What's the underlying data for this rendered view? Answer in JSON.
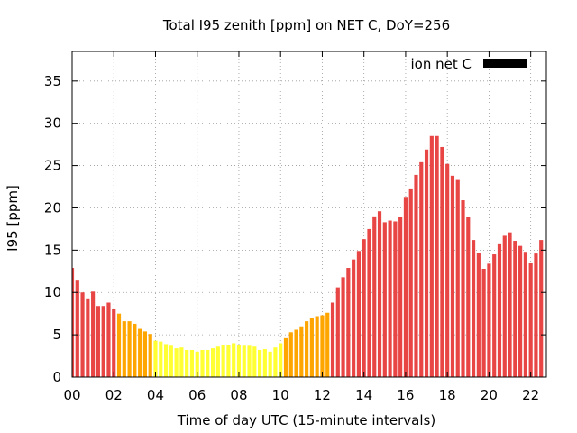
{
  "chart_data": {
    "type": "bar",
    "title": "Total I95 zenith [ppm] on NET C, DoY=256",
    "xlabel": "Time of day UTC (15-minute intervals)",
    "ylabel": "I95 [ppm]",
    "legend": {
      "label": "ion net C",
      "placement": "top-right",
      "color": "#000000"
    },
    "grid": true,
    "xlim": [
      0,
      22.75
    ],
    "ylim": [
      0,
      38.5
    ],
    "x_step_hours": 0.25,
    "x_ticks": [
      {
        "value": 0,
        "label": "00"
      },
      {
        "value": 2,
        "label": "02"
      },
      {
        "value": 4,
        "label": "04"
      },
      {
        "value": 6,
        "label": "06"
      },
      {
        "value": 8,
        "label": "08"
      },
      {
        "value": 10,
        "label": "10"
      },
      {
        "value": 12,
        "label": "12"
      },
      {
        "value": 14,
        "label": "14"
      },
      {
        "value": 16,
        "label": "16"
      },
      {
        "value": 18,
        "label": "18"
      },
      {
        "value": 20,
        "label": "20"
      },
      {
        "value": 22,
        "label": "22"
      }
    ],
    "y_ticks": [
      {
        "value": 0,
        "label": "0"
      },
      {
        "value": 5,
        "label": "5"
      },
      {
        "value": 10,
        "label": "10"
      },
      {
        "value": 15,
        "label": "15"
      },
      {
        "value": 20,
        "label": "20"
      },
      {
        "value": 25,
        "label": "25"
      },
      {
        "value": 30,
        "label": "30"
      },
      {
        "value": 35,
        "label": "35"
      }
    ],
    "color_thresholds": [
      {
        "max": 4.5,
        "color": "#ffff33"
      },
      {
        "max": 8.0,
        "color": "#ffa500"
      },
      {
        "max": 1000,
        "color": "#e84545"
      }
    ],
    "values": [
      12.9,
      11.5,
      10.0,
      9.3,
      10.1,
      8.4,
      8.4,
      8.8,
      8.1,
      7.5,
      6.6,
      6.6,
      6.3,
      5.7,
      5.4,
      5.1,
      4.3,
      4.2,
      3.9,
      3.7,
      3.4,
      3.5,
      3.2,
      3.2,
      3.0,
      3.2,
      3.2,
      3.4,
      3.6,
      3.8,
      3.8,
      4.0,
      3.8,
      3.7,
      3.7,
      3.6,
      3.2,
      3.3,
      3.0,
      3.5,
      4.0,
      4.6,
      5.3,
      5.6,
      6.0,
      6.6,
      7.0,
      7.2,
      7.3,
      7.6,
      8.8,
      10.6,
      11.8,
      12.9,
      13.9,
      14.9,
      16.3,
      17.5,
      19.0,
      19.6,
      18.3,
      18.5,
      18.4,
      18.9,
      21.3,
      22.3,
      23.9,
      25.4,
      26.9,
      28.5,
      28.5,
      27.2,
      25.2,
      23.8,
      23.4,
      20.9,
      18.9,
      16.2,
      14.7,
      12.8,
      13.4,
      14.5,
      15.8,
      16.7,
      17.1,
      16.1,
      15.5,
      14.8,
      13.5,
      14.6,
      16.2
    ]
  }
}
